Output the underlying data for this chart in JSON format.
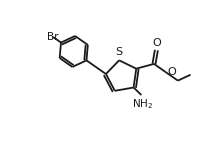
{
  "background_color": "#ffffff",
  "line_color": "#1a1a1a",
  "line_width": 1.3,
  "figsize": [
    2.18,
    1.59
  ],
  "dpi": 100,
  "xlim": [
    0,
    10
  ],
  "ylim": [
    0,
    7.3
  ]
}
